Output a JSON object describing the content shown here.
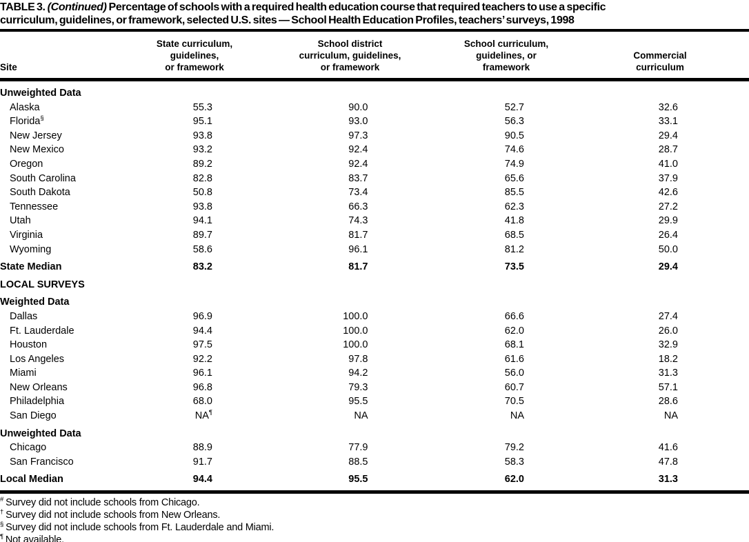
{
  "title": {
    "prefix": "TABLE 3.",
    "continued": "(Continued)",
    "line1_rest": "Percentage of schools with a required health education course that required teachers to use a specific",
    "line2": "curriculum, guidelines, or framework, selected U.S. sites — School Health Education Profiles, teachers’ surveys, 1998"
  },
  "table": {
    "columns": {
      "site": "Site",
      "c0": "State curriculum,\nguidelines,\nor framework",
      "c1": "School district\ncurriculum, guidelines,\nor framework",
      "c2": "School curriculum,\nguidelines, or\nframework",
      "c3": "Commercial\ncurriculum"
    },
    "rows": [
      {
        "type": "section",
        "site": "Unweighted Data"
      },
      {
        "type": "data",
        "site": "Alaska",
        "v": [
          "55.3",
          "90.0",
          "52.7",
          "32.6"
        ]
      },
      {
        "type": "data",
        "site": "Florida",
        "sup": "§",
        "v": [
          "95.1",
          "93.0",
          "56.3",
          "33.1"
        ]
      },
      {
        "type": "data",
        "site": "New Jersey",
        "v": [
          "93.8",
          "97.3",
          "90.5",
          "29.4"
        ]
      },
      {
        "type": "data",
        "site": "New Mexico",
        "v": [
          "93.2",
          "92.4",
          "74.6",
          "28.7"
        ]
      },
      {
        "type": "data",
        "site": "Oregon",
        "v": [
          "89.2",
          "92.4",
          "74.9",
          "41.0"
        ]
      },
      {
        "type": "data",
        "site": "South Carolina",
        "v": [
          "82.8",
          "83.7",
          "65.6",
          "37.9"
        ]
      },
      {
        "type": "data",
        "site": "South Dakota",
        "v": [
          "50.8",
          "73.4",
          "85.5",
          "42.6"
        ]
      },
      {
        "type": "data",
        "site": "Tennessee",
        "v": [
          "93.8",
          "66.3",
          "62.3",
          "27.2"
        ]
      },
      {
        "type": "data",
        "site": "Utah",
        "v": [
          "94.1",
          "74.3",
          "41.8",
          "29.9"
        ]
      },
      {
        "type": "data",
        "site": "Virginia",
        "v": [
          "89.7",
          "81.7",
          "68.5",
          "26.4"
        ]
      },
      {
        "type": "data",
        "site": "Wyoming",
        "v": [
          "58.6",
          "96.1",
          "81.2",
          "50.0"
        ]
      },
      {
        "type": "median",
        "site": "State Median",
        "v": [
          "83.2",
          "81.7",
          "73.5",
          "29.4"
        ]
      },
      {
        "type": "section",
        "site": "LOCAL SURVEYS"
      },
      {
        "type": "section",
        "site": "Weighted Data"
      },
      {
        "type": "data",
        "site": "Dallas",
        "v": [
          "96.9",
          "100.0",
          "66.6",
          "27.4"
        ]
      },
      {
        "type": "data",
        "site": "Ft. Lauderdale",
        "v": [
          "94.4",
          "100.0",
          "62.0",
          "26.0"
        ]
      },
      {
        "type": "data",
        "site": "Houston",
        "v": [
          "97.5",
          "100.0",
          "68.1",
          "32.9"
        ]
      },
      {
        "type": "data",
        "site": "Los Angeles",
        "v": [
          "92.2",
          "97.8",
          "61.6",
          "18.2"
        ]
      },
      {
        "type": "data",
        "site": "Miami",
        "v": [
          "96.1",
          "94.2",
          "56.0",
          "31.3"
        ]
      },
      {
        "type": "data",
        "site": "New Orleans",
        "v": [
          "96.8",
          "79.3",
          "60.7",
          "57.1"
        ]
      },
      {
        "type": "data",
        "site": "Philadelphia",
        "v": [
          "68.0",
          "95.5",
          "70.5",
          "28.6"
        ]
      },
      {
        "type": "data",
        "site": "San Diego",
        "v": [
          "NA",
          "NA",
          "NA",
          "NA"
        ],
        "vsup": [
          "¶",
          "",
          "",
          ""
        ]
      },
      {
        "type": "section",
        "site": "Unweighted Data"
      },
      {
        "type": "data",
        "site": "Chicago",
        "v": [
          "88.9",
          "77.9",
          "79.2",
          "41.6"
        ]
      },
      {
        "type": "data",
        "site": "San Francisco",
        "v": [
          "91.7",
          "88.5",
          "58.3",
          "47.8"
        ]
      },
      {
        "type": "median",
        "site": "Local Median",
        "v": [
          "94.4",
          "95.5",
          "62.0",
          "31.3"
        ]
      }
    ]
  },
  "footnotes": [
    {
      "marker": "#",
      "text": "Survey did not include schools from Chicago."
    },
    {
      "marker": "†",
      "text": "Survey did not include schools from New Orleans."
    },
    {
      "marker": "§",
      "text": "Survey did not include schools from Ft. Lauderdale and Miami."
    },
    {
      "marker": "¶",
      "text": "Not available."
    }
  ]
}
